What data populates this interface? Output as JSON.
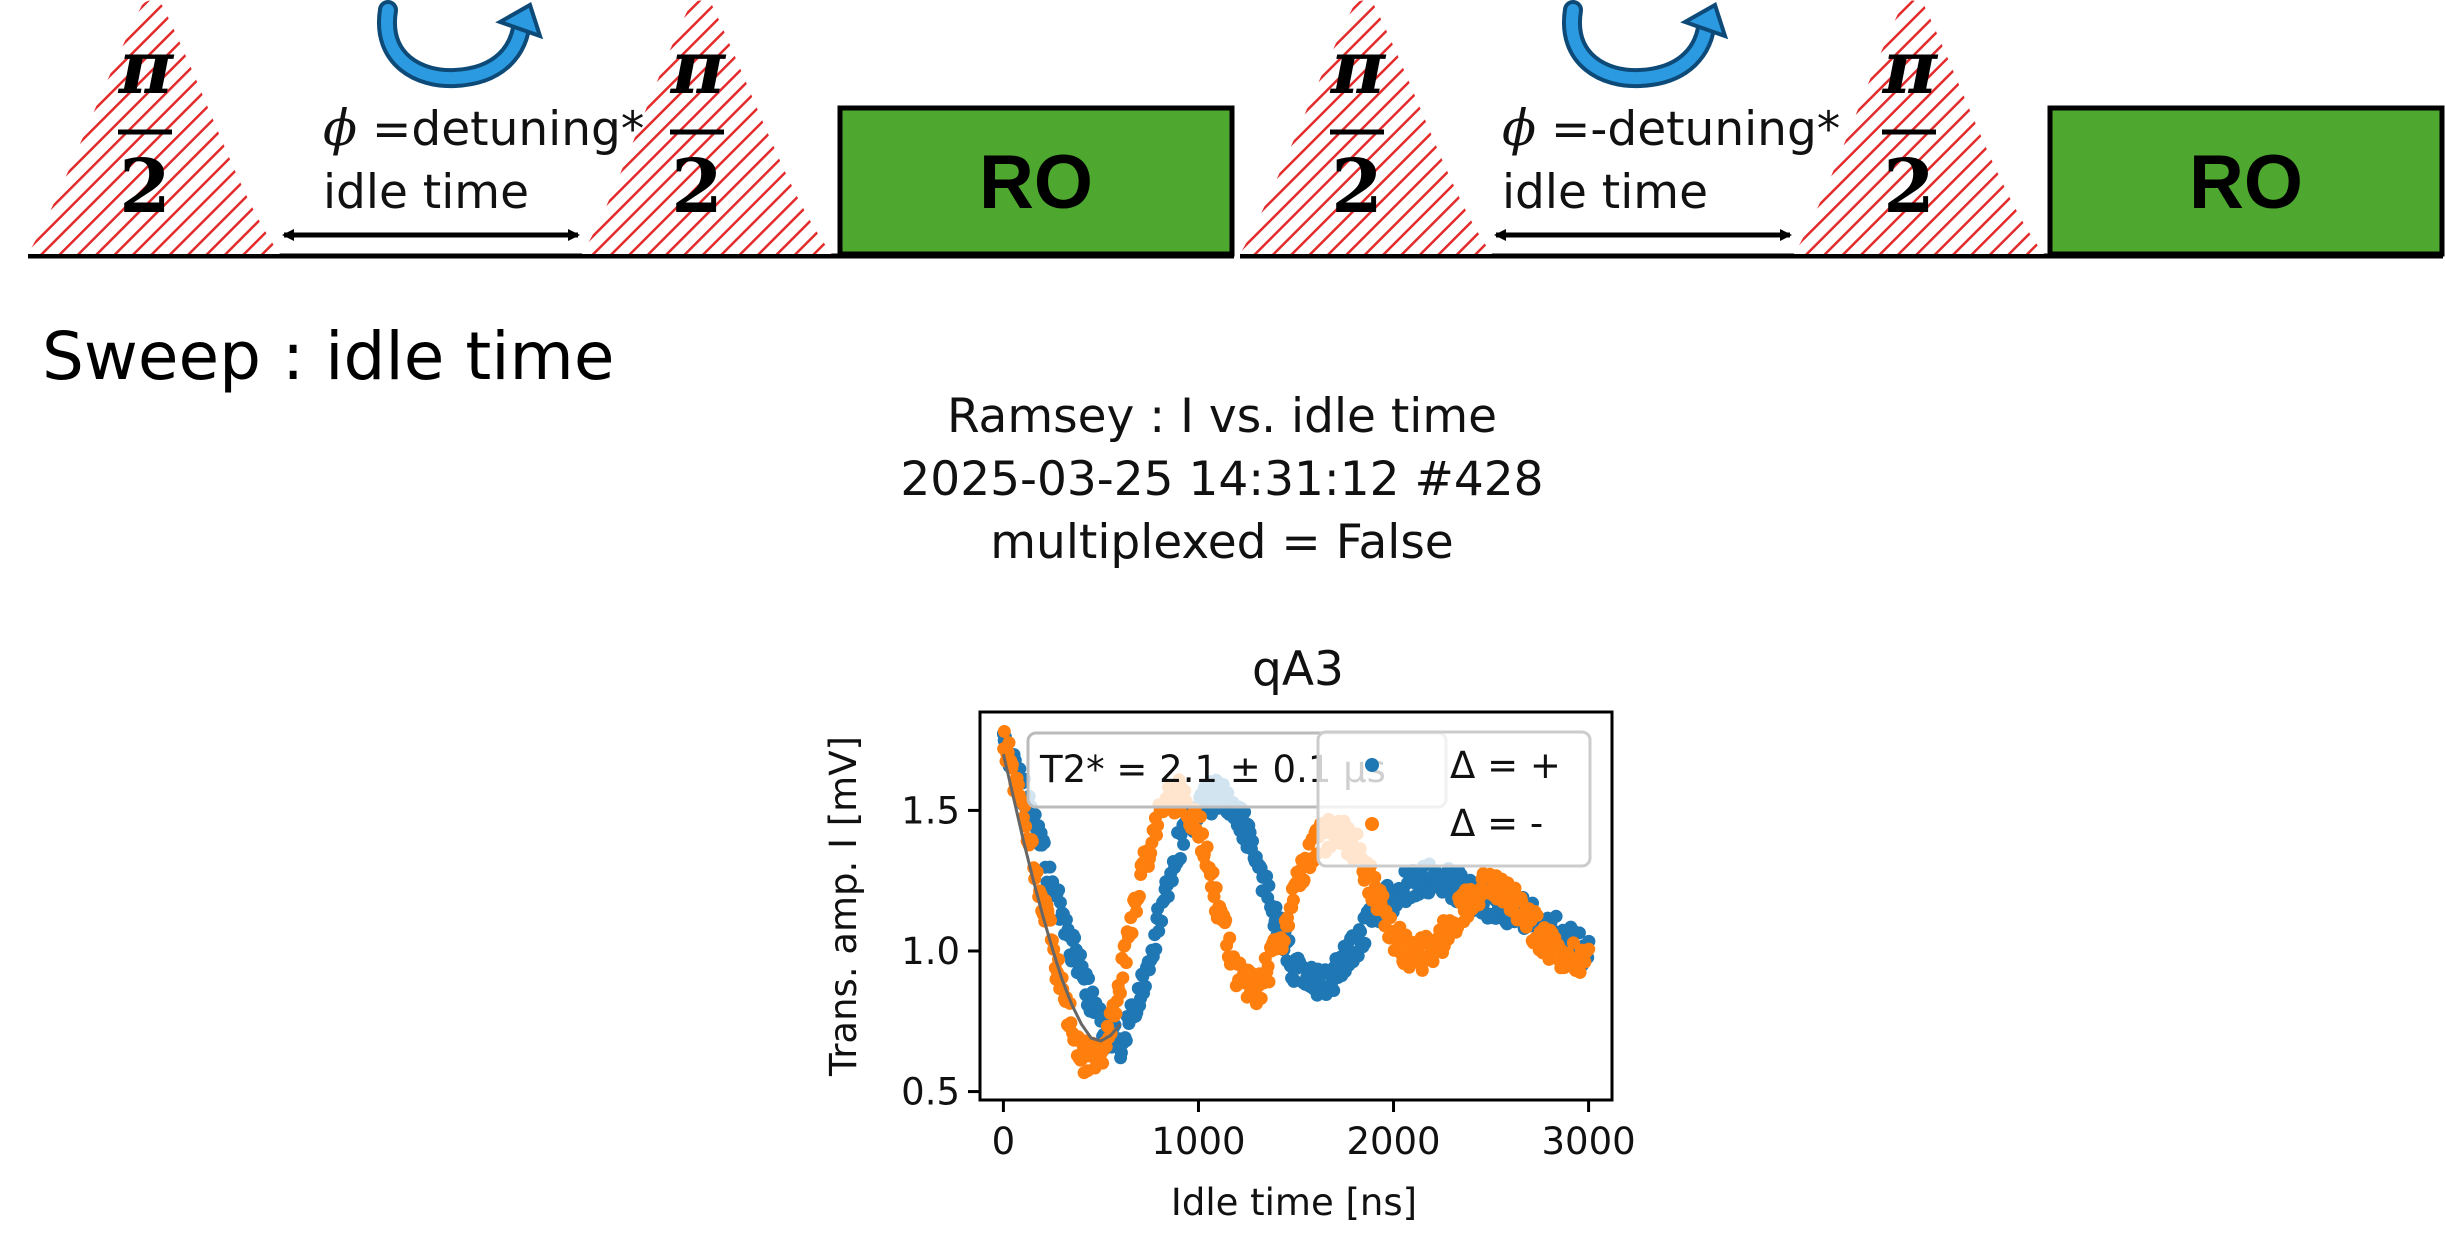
{
  "sequence_left": {
    "pulse_numerator": "π",
    "pulse_denominator": "2",
    "phase_symbol": "ϕ",
    "phase_text": " =detuning*",
    "idle_text": "idle time",
    "readout_label": "RO"
  },
  "sequence_right": {
    "pulse_numerator": "π",
    "pulse_denominator": "2",
    "phase_symbol": "ϕ",
    "phase_text": " =-detuning*",
    "idle_text": "idle time",
    "readout_label": "RO"
  },
  "colors": {
    "pulse_hatch": "#e32b2b",
    "readout_fill": "#4ea72e",
    "rotation_arrow": "#1a7ac0",
    "series_plus": "#1f77b4",
    "series_minus": "#ff7f0e"
  },
  "sweep_label": "Sweep : idle time",
  "figure": {
    "title_line1": "Ramsey : I vs. idle time",
    "title_line2": "2025-03-25 14:31:12 #428",
    "title_line3": "multiplexed = False"
  },
  "chart_data": {
    "type": "scatter",
    "title": "qA3",
    "xlabel": "Idle time [ns]",
    "ylabel": "Trans. amp. I [mV]",
    "xlim": [
      -120,
      3120
    ],
    "ylim": [
      0.47,
      1.85
    ],
    "xticks": [
      0,
      1000,
      2000,
      3000
    ],
    "yticks": [
      0.5,
      1.0,
      1.5
    ],
    "xtick_labels": [
      "0",
      "1000",
      "2000",
      "3000"
    ],
    "ytick_labels": [
      "0.5",
      "1.0",
      "1.5"
    ],
    "grid": false,
    "legend_placement": "upper-right",
    "fit_annotation": "T2* = 2.1 ± 0.1 μs",
    "series": [
      {
        "name": "Δ = +",
        "color": "#1f77b4",
        "x": [
          0,
          100,
          200,
          300,
          400,
          500,
          600,
          700,
          800,
          900,
          1000,
          1100,
          1200,
          1300,
          1400,
          1500,
          1600,
          1700,
          1800,
          1900,
          2000,
          2100,
          2200,
          2300,
          2400,
          2500,
          2600,
          2700,
          2800,
          2900,
          3000
        ],
        "y": [
          1.72,
          1.58,
          1.35,
          1.12,
          0.92,
          0.72,
          0.68,
          0.85,
          1.12,
          1.38,
          1.52,
          1.56,
          1.5,
          1.32,
          1.1,
          0.92,
          0.88,
          0.92,
          1.02,
          1.12,
          1.2,
          1.24,
          1.26,
          1.24,
          1.2,
          1.17,
          1.15,
          1.12,
          1.08,
          1.03,
          1.0
        ]
      },
      {
        "name": "Δ = -",
        "color": "#ff7f0e",
        "x": [
          0,
          100,
          200,
          300,
          400,
          500,
          600,
          700,
          800,
          900,
          1000,
          1100,
          1200,
          1300,
          1400,
          1500,
          1600,
          1700,
          1800,
          1900,
          2000,
          2100,
          2200,
          2300,
          2400,
          2500,
          2600,
          2700,
          2800,
          2900,
          3000
        ],
        "y": [
          1.76,
          1.5,
          1.18,
          0.86,
          0.62,
          0.62,
          0.9,
          1.25,
          1.5,
          1.55,
          1.45,
          1.15,
          0.92,
          0.86,
          1.0,
          1.22,
          1.38,
          1.44,
          1.38,
          1.22,
          1.05,
          0.98,
          1.0,
          1.1,
          1.2,
          1.24,
          1.2,
          1.1,
          1.02,
          0.98,
          0.98
        ]
      }
    ],
    "fit": {
      "x": [
        0,
        50,
        100,
        150,
        200,
        250,
        300,
        350,
        400,
        450,
        500,
        550,
        600
      ],
      "y": [
        1.7,
        1.55,
        1.4,
        1.26,
        1.13,
        1.01,
        0.9,
        0.81,
        0.74,
        0.69,
        0.68,
        0.7,
        0.74
      ]
    }
  }
}
